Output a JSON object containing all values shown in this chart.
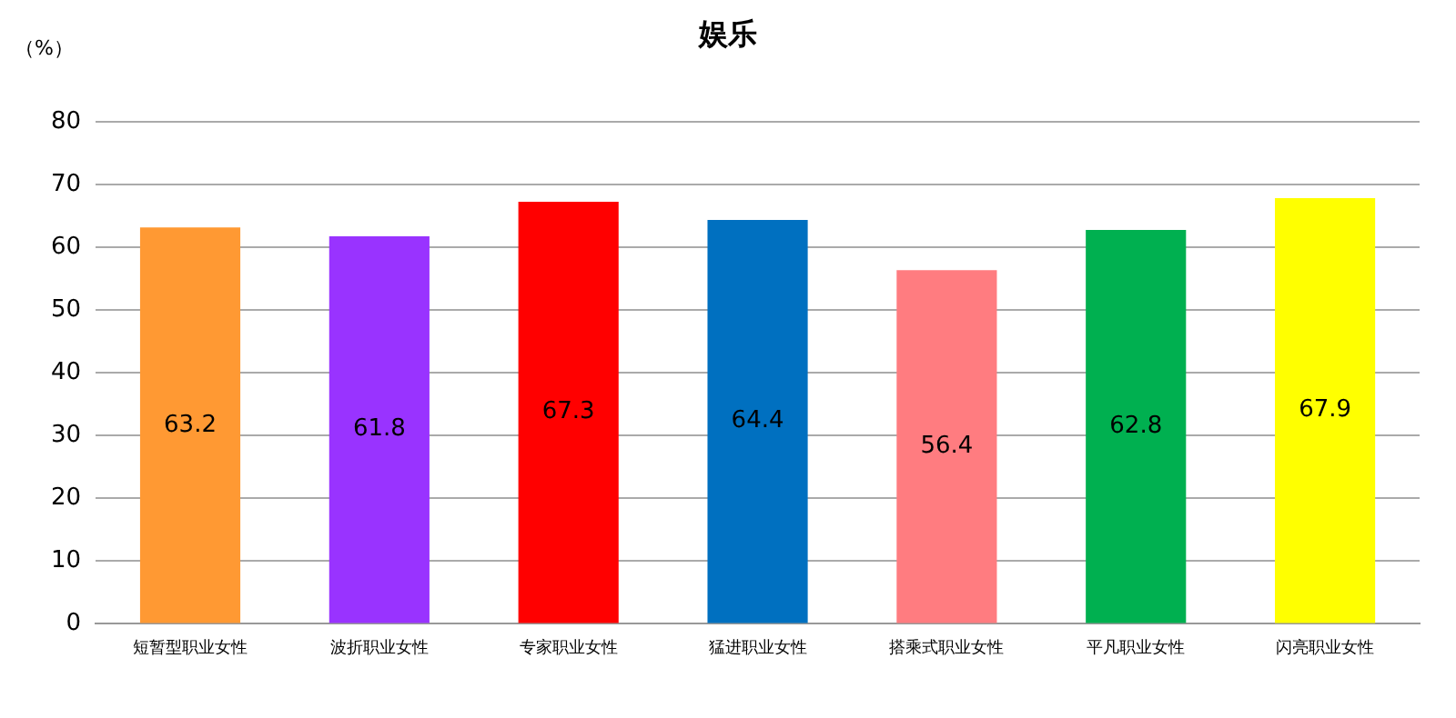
{
  "chart_data": {
    "type": "bar",
    "title": "娱乐",
    "ylabel": "（%）",
    "categories": [
      "短暂型职业女性",
      "波折职业女性",
      "专家职业女性",
      "猛进职业女性",
      "搭乘式职业女性",
      "平凡职业女性",
      "闪亮职业女性"
    ],
    "values": [
      63.2,
      61.8,
      67.3,
      64.4,
      56.4,
      62.8,
      67.9
    ],
    "colors": [
      "#ff9933",
      "#9933ff",
      "#ff0000",
      "#0070c0",
      "#ff7c80",
      "#00b050",
      "#ffff00"
    ],
    "ylim": [
      0,
      80
    ],
    "yticks": [
      0,
      10,
      20,
      30,
      40,
      50,
      60,
      70,
      80
    ],
    "grid": "y",
    "data_labels": true,
    "legend": false
  }
}
